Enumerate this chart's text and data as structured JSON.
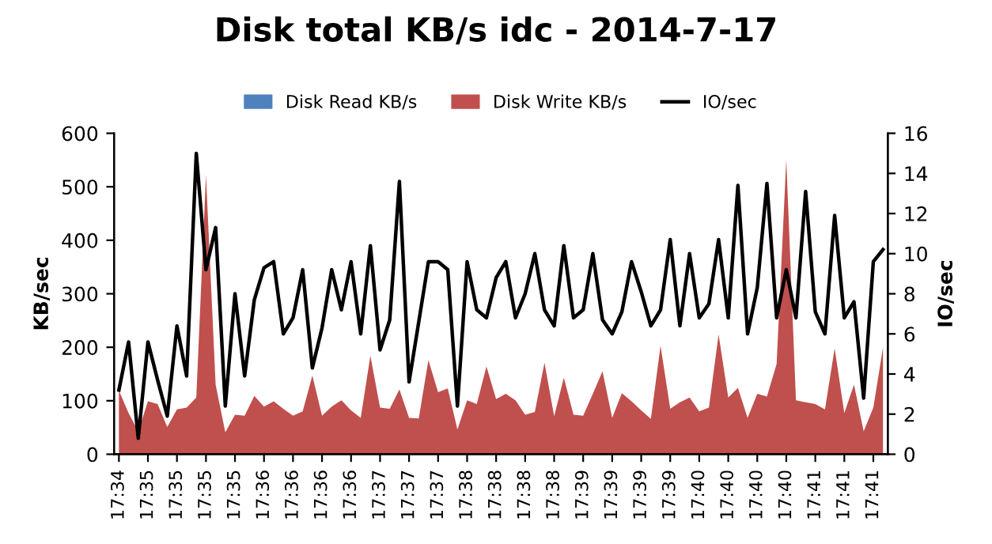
{
  "chart_data": {
    "type": "area",
    "title": "Disk total KB/s idc - 2014-7-17",
    "ylabel": "KB/sec",
    "y2label": "IO/sec",
    "categories": [
      "17:34",
      null,
      null,
      "17:35",
      null,
      null,
      "17:35",
      null,
      null,
      "17:35",
      null,
      null,
      "17:35",
      null,
      null,
      "17:36",
      null,
      null,
      "17:36",
      null,
      null,
      "17:36",
      null,
      null,
      "17:36",
      null,
      null,
      "17:37",
      null,
      null,
      "17:37",
      null,
      null,
      "17:37",
      null,
      null,
      "17:38",
      null,
      null,
      "17:38",
      null,
      null,
      "17:38",
      null,
      null,
      "17:38",
      null,
      null,
      "17:39",
      null,
      null,
      "17:39",
      null,
      null,
      "17:39",
      null,
      null,
      "17:39",
      null,
      null,
      "17:40",
      null,
      null,
      "17:40",
      null,
      null,
      "17:40",
      null,
      null,
      "17:40",
      null,
      null,
      "17:41",
      null,
      null,
      "17:41",
      null,
      null,
      "17:41",
      null
    ],
    "series": [
      {
        "name": "Disk Read KB/s",
        "color": "#4f81bd",
        "values": [
          null,
          null,
          null,
          null,
          null,
          null,
          null,
          null,
          null,
          null,
          null,
          null,
          null,
          null,
          null,
          null,
          null,
          null,
          null,
          null,
          null,
          null,
          null,
          null,
          null,
          null,
          null,
          null,
          null,
          null,
          null,
          null,
          null,
          null,
          null,
          null,
          null,
          null,
          null,
          null,
          null,
          null,
          null,
          null,
          null,
          null,
          null,
          null,
          null,
          null,
          null,
          null,
          null,
          null,
          null,
          null,
          null,
          null,
          null,
          null,
          null,
          null,
          null,
          null,
          null,
          null,
          null,
          null,
          null,
          null,
          null,
          null,
          null,
          null,
          null,
          null,
          null,
          null,
          null,
          null
        ]
      },
      {
        "name": "Disk Write KB/s",
        "color": "#c0504d",
        "values": [
          119,
          77,
          43,
          99,
          94,
          51,
          84,
          87,
          106,
          522,
          130,
          41,
          74,
          72,
          109,
          89,
          99,
          85,
          72,
          80,
          147,
          72,
          89,
          101,
          82,
          68,
          184,
          87,
          85,
          121,
          68,
          67,
          176,
          116,
          123,
          46,
          101,
          94,
          164,
          103,
          113,
          101,
          74,
          79,
          171,
          71,
          143,
          74,
          72,
          113,
          155,
          68,
          114,
          99,
          82,
          66,
          203,
          85,
          97,
          106,
          80,
          87,
          224,
          106,
          124,
          68,
          113,
          108,
          169,
          551,
          101,
          97,
          94,
          84,
          198,
          77,
          130,
          43,
          87,
          200
        ]
      },
      {
        "name": "IO/sec",
        "color": "#000000",
        "type": "line",
        "axis": "y2",
        "values": [
          3.2,
          5.6,
          0.8,
          5.6,
          3.7,
          1.9,
          6.4,
          3.9,
          15.0,
          9.2,
          11.3,
          2.4,
          8.0,
          3.9,
          7.7,
          9.3,
          9.6,
          6.0,
          6.8,
          9.2,
          4.3,
          6.3,
          9.2,
          7.2,
          9.6,
          6.0,
          10.4,
          5.2,
          6.7,
          13.6,
          3.6,
          6.6,
          9.6,
          9.6,
          9.2,
          2.4,
          9.6,
          7.2,
          6.8,
          8.8,
          9.6,
          6.8,
          8.0,
          10.0,
          7.2,
          6.4,
          10.4,
          6.8,
          7.2,
          10.0,
          6.7,
          6.0,
          7.1,
          9.6,
          8.1,
          6.4,
          7.2,
          10.7,
          6.4,
          10.0,
          6.8,
          7.5,
          10.7,
          6.8,
          13.4,
          6.0,
          8.3,
          13.5,
          6.8,
          9.2,
          6.8,
          13.1,
          7.1,
          6.0,
          11.9,
          6.8,
          7.6,
          2.8,
          9.6,
          10.2
        ]
      }
    ],
    "ylim": [
      0,
      600
    ],
    "yticks": [
      0,
      100,
      200,
      300,
      400,
      500,
      600
    ],
    "y2lim": [
      0,
      16
    ],
    "y2ticks": [
      0,
      2,
      4,
      6,
      8,
      10,
      12,
      14,
      16
    ],
    "grid": false,
    "legend": "top"
  }
}
